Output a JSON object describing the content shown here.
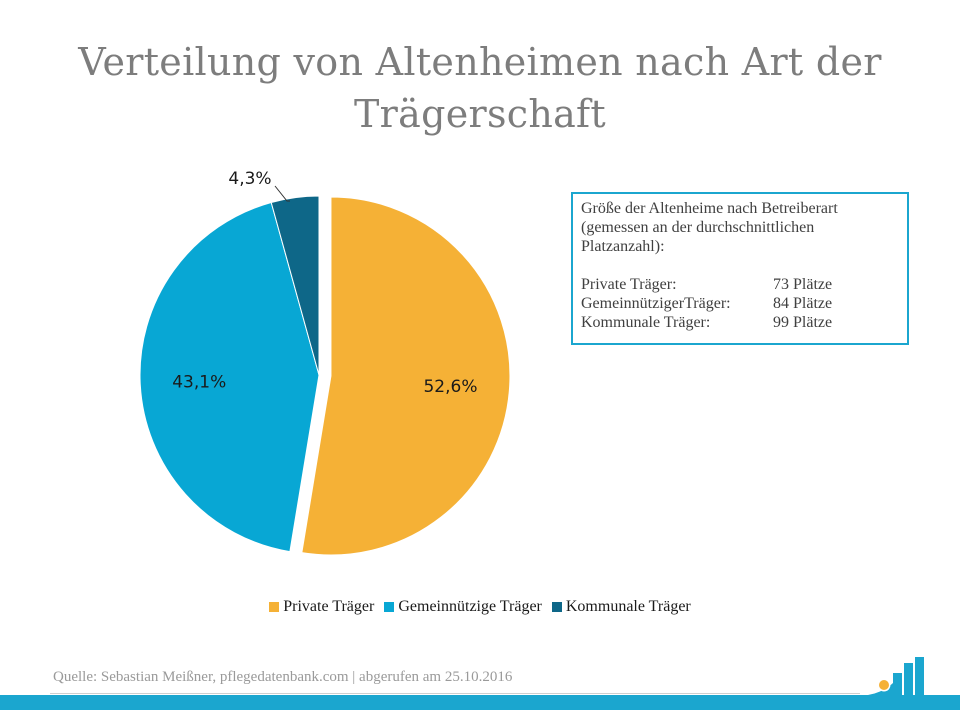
{
  "title": "Verteilung von Altenheimen nach Art der Trägerschaft",
  "chart_data": {
    "type": "pie",
    "title": "Verteilung von Altenheimen nach Art der Trägerschaft",
    "slices": [
      {
        "name": "Private Träger",
        "value": 52.6,
        "label": "52,6%",
        "color": "#f5b136"
      },
      {
        "name": "Gemeinnützige Träger",
        "value": 43.1,
        "label": "43,1%",
        "color": "#08a7d4"
      },
      {
        "name": "Kommunale Träger",
        "value": 4.3,
        "label": "4,3%",
        "color": "#0e6788"
      }
    ],
    "legend_position": "bottom",
    "exploded_slice": "Private Träger"
  },
  "info_box": {
    "heading": "Größe der Altenheime nach Betreiberart\n(gemessen an der durchschnittlichen\nPlatzanzahl):",
    "rows": [
      {
        "name": "Private Träger:",
        "value": "73 Plätze"
      },
      {
        "name": "GemeinnützigerTräger:",
        "value": "84 Plätze"
      },
      {
        "name": "Kommunale Träger:",
        "value": "99 Plätze"
      }
    ]
  },
  "legend": {
    "items": [
      {
        "label": "Private Träger",
        "color": "#f5b136"
      },
      {
        "label": "Gemeinnützige Träger",
        "color": "#08a7d4"
      },
      {
        "label": "Kommunale Träger",
        "color": "#0e6788"
      }
    ]
  },
  "source": "Quelle: Sebastian Meißner, pflegedatenbank.com | abgerufen am 25.10.2016",
  "colors": {
    "accent": "#1ba6cf",
    "title_text": "#7d7d7d",
    "logo_dot": "#f5b136"
  }
}
